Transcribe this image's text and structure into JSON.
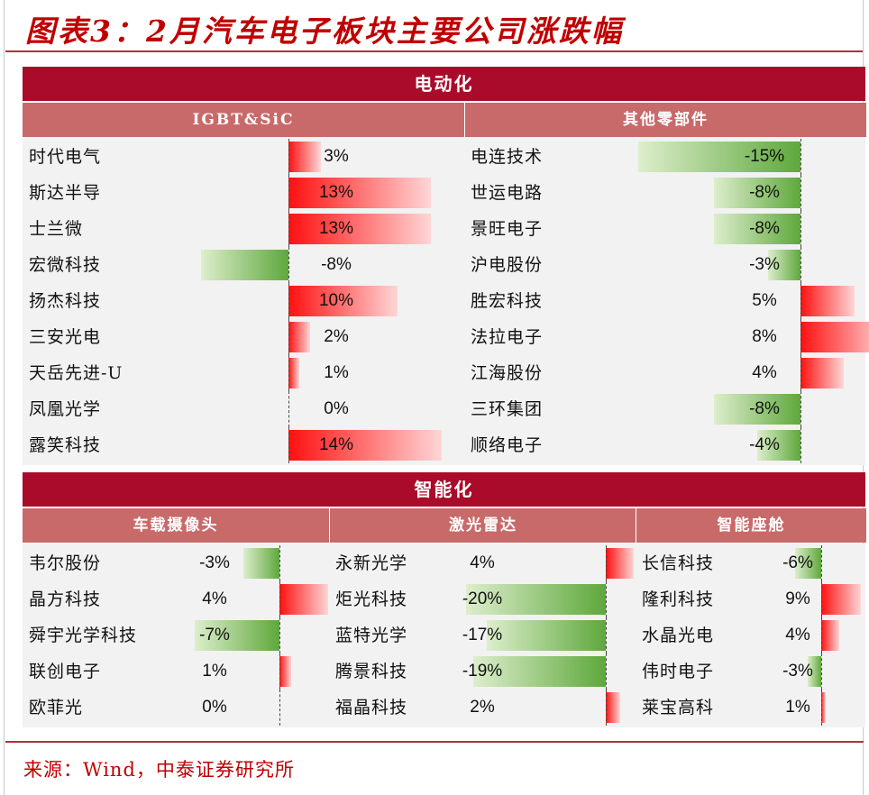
{
  "title": "图表3：2月汽车电子板块主要公司涨跌幅",
  "source": "来源：Wind，中泰证券研究所",
  "colors": {
    "header": "#aa0b2a",
    "subheader": "#c86a6a",
    "positive": "#ff1010",
    "negative": "#5ea83c"
  },
  "chart_data": [
    {
      "type": "bar",
      "section": "电动化",
      "title": "IGBT&SiC",
      "categories": [
        "时代电气",
        "斯达半导",
        "士兰微",
        "宏微科技",
        "扬杰科技",
        "三安光电",
        "天岳先进-U",
        "凤凰光学",
        "露笑科技"
      ],
      "values": [
        3,
        13,
        13,
        -8,
        10,
        2,
        1,
        0,
        14
      ],
      "labels": [
        "3%",
        "13%",
        "13%",
        "-8%",
        "10%",
        "2%",
        "1%",
        "0%",
        "14%"
      ]
    },
    {
      "type": "bar",
      "section": "电动化",
      "title": "其他零部件",
      "categories": [
        "电连技术",
        "世运电路",
        "景旺电子",
        "沪电股份",
        "胜宏科技",
        "法拉电子",
        "江海股份",
        "三环集团",
        "顺络电子"
      ],
      "values": [
        -15,
        -8,
        -8,
        -3,
        5,
        8,
        4,
        -8,
        -4
      ],
      "labels": [
        "-15%",
        "-8%",
        "-8%",
        "-3%",
        "5%",
        "8%",
        "4%",
        "-8%",
        "-4%"
      ]
    },
    {
      "type": "bar",
      "section": "智能化",
      "title": "车载摄像头",
      "categories": [
        "韦尔股份",
        "晶方科技",
        "舜宇光学科技",
        "联创电子",
        "欧菲光"
      ],
      "values": [
        -3,
        4,
        -7,
        1,
        0
      ],
      "labels": [
        "-3%",
        "4%",
        "-7%",
        "1%",
        "0%"
      ]
    },
    {
      "type": "bar",
      "section": "智能化",
      "title": "激光雷达",
      "categories": [
        "永新光学",
        "炬光科技",
        "蓝特光学",
        "腾景科技",
        "福晶科技"
      ],
      "values": [
        4,
        -20,
        -17,
        -19,
        2
      ],
      "labels": [
        "4%",
        "-20%",
        "-17%",
        "-19%",
        "2%"
      ]
    },
    {
      "type": "bar",
      "section": "智能化",
      "title": "智能座舱",
      "categories": [
        "长信科技",
        "隆利科技",
        "水晶光电",
        "伟时电子",
        "莱宝高科"
      ],
      "values": [
        -6,
        9,
        4,
        -3,
        1
      ],
      "labels": [
        "-6%",
        "9%",
        "4%",
        "-3%",
        "1%"
      ]
    }
  ]
}
